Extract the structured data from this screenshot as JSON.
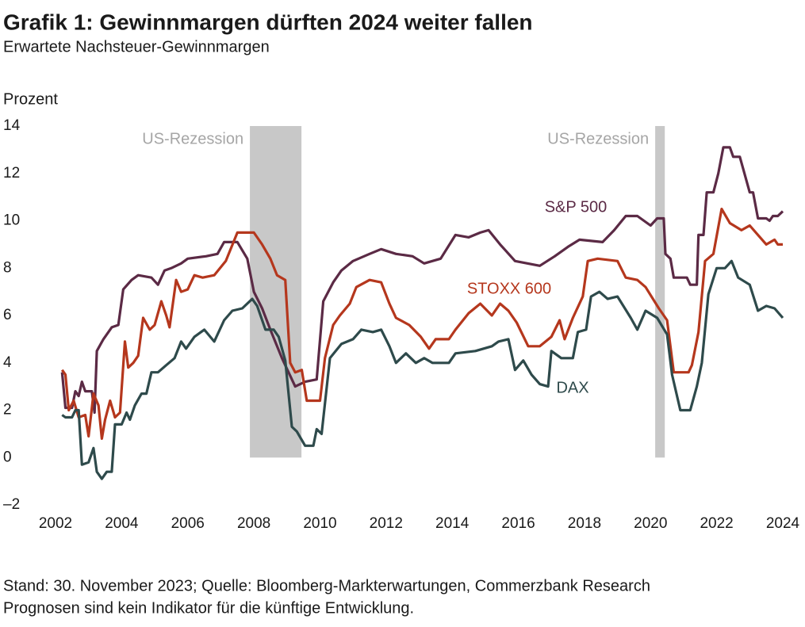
{
  "chart_data": {
    "type": "line",
    "title": "Grafik 1: Gewinnmargen dürften 2024 weiter fallen",
    "subtitle": "Erwartete Nachsteuer-Gewinnmargen",
    "y_label": "Prozent",
    "footnotes": [
      "Stand: 30. November 2023; Quelle: Bloomberg-Markterwartungen, Commerzbank Research",
      "Prognosen sind kein Indikator für die künftige Entwicklung."
    ],
    "xlim": [
      2002,
      2024
    ],
    "xticks": [
      2002,
      2004,
      2006,
      2008,
      2010,
      2012,
      2014,
      2016,
      2018,
      2020,
      2022,
      2024
    ],
    "ylim": [
      -2,
      14
    ],
    "yticks": [
      {
        "value": -2,
        "label": "–2"
      },
      0,
      2,
      4,
      6,
      8,
      10,
      12,
      14
    ],
    "grid": false,
    "regions": [
      {
        "label": "US-Rezession",
        "x": [
          2007.88,
          2009.44
        ],
        "y": [
          0,
          14
        ],
        "color": "#c8c8c8"
      },
      {
        "label": "US-Rezession",
        "x": [
          2020.14,
          2020.43
        ],
        "y": [
          0,
          14
        ],
        "color": "#c8c8c8"
      }
    ],
    "series": [
      {
        "name": "S&P 500",
        "color": "#5b2a45",
        "x": [
          2002.2,
          2002.3,
          2002.5,
          2002.6,
          2002.7,
          2002.8,
          2002.9,
          2003.1,
          2003.18,
          2003.25,
          2003.45,
          2003.7,
          2003.9,
          2004.05,
          2004.3,
          2004.5,
          2004.9,
          2005.1,
          2005.3,
          2005.5,
          2005.8,
          2006.0,
          2006.55,
          2006.9,
          2007.1,
          2007.5,
          2007.8,
          2008.0,
          2008.25,
          2008.5,
          2008.85,
          2009.25,
          2009.55,
          2009.9,
          2010.1,
          2010.4,
          2010.65,
          2011.0,
          2011.5,
          2011.85,
          2012.3,
          2012.8,
          2013.15,
          2013.65,
          2014.1,
          2014.5,
          2014.85,
          2015.1,
          2015.45,
          2015.9,
          2016.65,
          2017.1,
          2017.5,
          2017.85,
          2018.55,
          2018.9,
          2019.25,
          2019.6,
          2020.0,
          2020.2,
          2020.4,
          2020.45,
          2020.6,
          2020.7,
          2021.1,
          2021.2,
          2021.4,
          2021.45,
          2021.6,
          2021.7,
          2021.9,
          2022.05,
          2022.2,
          2022.4,
          2022.5,
          2022.7,
          2022.8,
          2023.0,
          2023.1,
          2023.25,
          2023.5,
          2023.6,
          2023.7,
          2023.85,
          2024.0
        ],
        "values": [
          3.6,
          2.1,
          2.1,
          2.8,
          2.6,
          3.2,
          2.8,
          2.8,
          1.9,
          4.5,
          5.0,
          5.5,
          5.6,
          7.1,
          7.5,
          7.7,
          7.6,
          7.3,
          7.9,
          8.0,
          8.2,
          8.4,
          8.5,
          8.6,
          9.1,
          9.1,
          8.4,
          7.0,
          6.3,
          5.4,
          4.2,
          3.0,
          3.2,
          3.3,
          6.6,
          7.4,
          7.9,
          8.3,
          8.6,
          8.8,
          8.6,
          8.5,
          8.2,
          8.4,
          9.4,
          9.3,
          9.5,
          9.6,
          9.0,
          8.3,
          8.1,
          8.5,
          8.9,
          9.2,
          9.1,
          9.6,
          10.2,
          10.2,
          9.8,
          10.1,
          10.1,
          8.6,
          8.4,
          7.6,
          7.6,
          7.3,
          7.3,
          9.4,
          9.4,
          11.2,
          11.2,
          12.0,
          13.1,
          13.1,
          12.7,
          12.7,
          12.2,
          11.2,
          11.2,
          10.1,
          10.1,
          10.0,
          10.2,
          10.2,
          10.4
        ]
      },
      {
        "name": "STOXX 600",
        "color": "#b5371d",
        "x": [
          2002.2,
          2002.3,
          2002.4,
          2002.55,
          2002.7,
          2002.9,
          2003.0,
          2003.15,
          2003.3,
          2003.4,
          2003.5,
          2003.65,
          2003.8,
          2003.95,
          2004.1,
          2004.2,
          2004.35,
          2004.5,
          2004.65,
          2004.85,
          2005.0,
          2005.2,
          2005.35,
          2005.45,
          2005.65,
          2005.8,
          2006.0,
          2006.2,
          2006.45,
          2006.8,
          2007.15,
          2007.5,
          2008.0,
          2008.25,
          2008.5,
          2008.7,
          2008.95,
          2009.1,
          2009.25,
          2009.45,
          2009.6,
          2010.0,
          2010.15,
          2010.4,
          2010.6,
          2010.9,
          2011.1,
          2011.5,
          2011.85,
          2012.1,
          2012.3,
          2012.7,
          2013.05,
          2013.3,
          2013.5,
          2013.9,
          2014.1,
          2014.5,
          2014.85,
          2015.2,
          2015.45,
          2015.7,
          2015.95,
          2016.3,
          2016.65,
          2017.0,
          2017.25,
          2017.4,
          2017.65,
          2017.95,
          2018.1,
          2018.4,
          2019.0,
          2019.25,
          2019.6,
          2019.85,
          2020.25,
          2020.5,
          2020.7,
          2021.15,
          2021.25,
          2021.45,
          2021.65,
          2021.9,
          2022.15,
          2022.4,
          2022.75,
          2023.0,
          2023.25,
          2023.5,
          2023.75,
          2023.85,
          2024.0
        ],
        "values": [
          3.7,
          3.5,
          2.0,
          2.4,
          1.7,
          1.8,
          0.9,
          2.7,
          2.2,
          0.8,
          1.6,
          2.4,
          1.7,
          1.9,
          4.9,
          3.8,
          4.0,
          4.3,
          5.9,
          5.4,
          5.6,
          6.6,
          6.0,
          5.5,
          7.5,
          7.0,
          7.1,
          7.7,
          7.6,
          7.7,
          8.3,
          9.5,
          9.5,
          9.0,
          8.4,
          7.7,
          7.5,
          4.0,
          3.6,
          3.7,
          2.4,
          2.4,
          4.2,
          5.6,
          6.0,
          6.5,
          7.2,
          7.5,
          7.4,
          6.5,
          5.9,
          5.6,
          5.1,
          4.6,
          5.0,
          5.0,
          5.4,
          6.1,
          6.5,
          6.0,
          6.5,
          6.2,
          5.7,
          4.7,
          4.7,
          5.1,
          5.8,
          5.0,
          5.9,
          6.8,
          8.3,
          8.4,
          8.3,
          7.6,
          7.5,
          7.2,
          6.3,
          5.8,
          3.6,
          3.6,
          3.9,
          5.3,
          8.3,
          8.6,
          10.5,
          9.9,
          9.6,
          9.8,
          9.4,
          9.0,
          9.2,
          9.0,
          9.0
        ]
      },
      {
        "name": "DAX",
        "color": "#2e4a4b",
        "x": [
          2002.2,
          2002.3,
          2002.5,
          2002.6,
          2002.7,
          2002.8,
          2003.0,
          2003.15,
          2003.25,
          2003.4,
          2003.55,
          2003.7,
          2003.8,
          2004.0,
          2004.15,
          2004.25,
          2004.4,
          2004.6,
          2004.75,
          2004.9,
          2005.1,
          2005.35,
          2005.6,
          2005.8,
          2005.95,
          2006.2,
          2006.5,
          2006.8,
          2007.1,
          2007.35,
          2007.65,
          2007.95,
          2008.1,
          2008.35,
          2008.6,
          2008.75,
          2008.95,
          2009.15,
          2009.3,
          2009.55,
          2009.8,
          2009.9,
          2010.05,
          2010.3,
          2010.65,
          2011.0,
          2011.25,
          2011.6,
          2011.85,
          2012.1,
          2012.3,
          2012.6,
          2012.9,
          2013.15,
          2013.4,
          2013.9,
          2014.1,
          2014.7,
          2015.2,
          2015.4,
          2015.7,
          2015.9,
          2016.15,
          2016.4,
          2016.65,
          2016.9,
          2017.0,
          2017.3,
          2017.65,
          2017.8,
          2018.05,
          2018.2,
          2018.45,
          2018.7,
          2019.0,
          2019.4,
          2019.6,
          2019.85,
          2020.2,
          2020.5,
          2020.65,
          2020.9,
          2021.2,
          2021.4,
          2021.55,
          2021.75,
          2022.0,
          2022.25,
          2022.45,
          2022.65,
          2023.0,
          2023.25,
          2023.5,
          2023.75,
          2024.0
        ],
        "values": [
          1.8,
          1.7,
          1.7,
          2.0,
          2.0,
          -0.3,
          -0.2,
          0.4,
          -0.6,
          -0.9,
          -0.6,
          -0.6,
          1.4,
          1.4,
          1.9,
          1.6,
          2.2,
          2.7,
          2.7,
          3.6,
          3.6,
          3.9,
          4.2,
          4.9,
          4.6,
          5.1,
          5.4,
          4.9,
          5.8,
          6.2,
          6.3,
          6.7,
          6.4,
          5.4,
          5.4,
          5.1,
          4.1,
          1.3,
          1.1,
          0.5,
          0.5,
          1.2,
          1.0,
          4.2,
          4.8,
          5.0,
          5.4,
          5.3,
          5.4,
          4.7,
          4.0,
          4.4,
          4.0,
          4.2,
          4.0,
          4.0,
          4.4,
          4.5,
          4.7,
          4.9,
          5.0,
          3.7,
          4.1,
          3.5,
          3.1,
          3.0,
          4.5,
          4.2,
          4.2,
          5.3,
          5.4,
          6.8,
          7.0,
          6.7,
          6.8,
          5.9,
          5.4,
          6.2,
          5.9,
          5.2,
          3.5,
          2.0,
          2.0,
          3.0,
          4.0,
          6.9,
          8.0,
          8.0,
          8.3,
          7.6,
          7.3,
          6.2,
          6.4,
          6.3,
          5.9
        ]
      }
    ]
  }
}
